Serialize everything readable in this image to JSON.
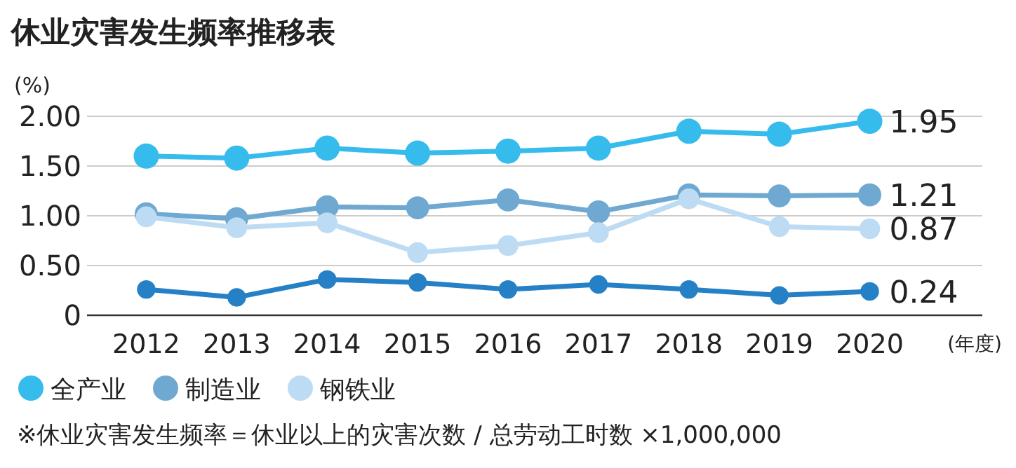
{
  "chart_data": {
    "type": "line",
    "title": "休业灾害发生频率推移表",
    "ylabel": "(%)",
    "xlabel": "(年度)",
    "categories": [
      "2012",
      "2013",
      "2014",
      "2015",
      "2016",
      "2017",
      "2018",
      "2019",
      "2020"
    ],
    "ylim": [
      0,
      2
    ],
    "yticks": [
      {
        "value": 0,
        "label": "0"
      },
      {
        "value": 0.5,
        "label": "0.50"
      },
      {
        "value": 1,
        "label": "1.00"
      },
      {
        "value": 1.5,
        "label": "1.50"
      },
      {
        "value": 2,
        "label": "2.00"
      }
    ],
    "grid": "y",
    "legend": "bottom",
    "marker": "circle",
    "series": [
      {
        "name": "全产业",
        "color": "#36bcec",
        "values": [
          1.6,
          1.58,
          1.68,
          1.63,
          1.65,
          1.68,
          1.85,
          1.82,
          1.95
        ],
        "value_labels": [
          null,
          null,
          null,
          null,
          null,
          null,
          null,
          null,
          "1.95"
        ]
      },
      {
        "name": "制造业",
        "color": "#6fa8d0",
        "values": [
          1.02,
          0.97,
          1.09,
          1.08,
          1.16,
          1.04,
          1.21,
          1.2,
          1.21
        ],
        "value_labels": [
          null,
          null,
          null,
          null,
          null,
          null,
          null,
          null,
          "1.21"
        ]
      },
      {
        "name": "钢铁业",
        "color": "#bddcf4",
        "values": [
          0.99,
          0.88,
          0.93,
          0.63,
          0.7,
          0.83,
          1.17,
          0.89,
          0.87
        ],
        "value_labels": [
          null,
          null,
          null,
          null,
          null,
          null,
          null,
          null,
          "0.87"
        ]
      },
      {
        "color": "#2680c5",
        "values": [
          0.26,
          0.18,
          0.36,
          0.33,
          0.26,
          0.31,
          0.26,
          0.2,
          0.24
        ],
        "value_labels": [
          null,
          null,
          null,
          null,
          null,
          null,
          null,
          null,
          "0.24"
        ]
      }
    ],
    "annotations": [
      "※休业灾害发生频率＝休业以上的灾害次数 / 总劳动工时数 ×1,000,000"
    ]
  }
}
